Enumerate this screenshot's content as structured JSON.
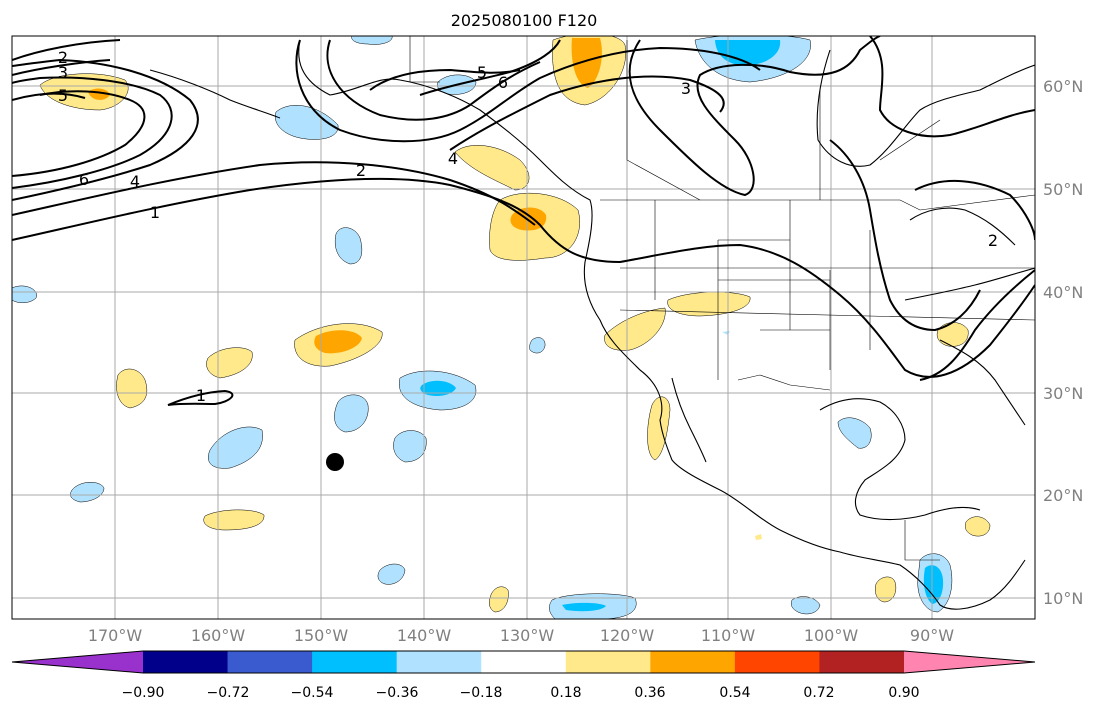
{
  "title": "2025080100 F120",
  "lat_labels": [
    "60°N",
    "50°N",
    "40°N",
    "30°N",
    "20°N",
    "10°N"
  ],
  "lon_labels": [
    "170°W",
    "160°W",
    "150°W",
    "140°W",
    "130°W",
    "120°W",
    "110°W",
    "100°W",
    "90°W"
  ],
  "colorbar": {
    "ticks": [
      "−0.90",
      "−0.72",
      "−0.54",
      "−0.36",
      "−0.18",
      "0.18",
      "0.36",
      "0.54",
      "0.72",
      "0.90"
    ],
    "colors": [
      "#9932cc",
      "#00008b",
      "#3a5bd0",
      "#00bfff",
      "#b0e2ff",
      "#ffffff",
      "#ffe98a",
      "#ffa500",
      "#ff4500",
      "#b22222",
      "#ff85b0"
    ],
    "extend": "both"
  },
  "contour_labels": [
    "2",
    "3",
    "5",
    "6",
    "4",
    "1",
    "2",
    "5",
    "6",
    "4",
    "3",
    "1",
    "2"
  ],
  "colors": {
    "light_blue": "#b0e2ff",
    "blue": "#00bfff",
    "yellow": "#ffe98a",
    "orange": "#ffa500",
    "grid": "#a9a9a9"
  }
}
